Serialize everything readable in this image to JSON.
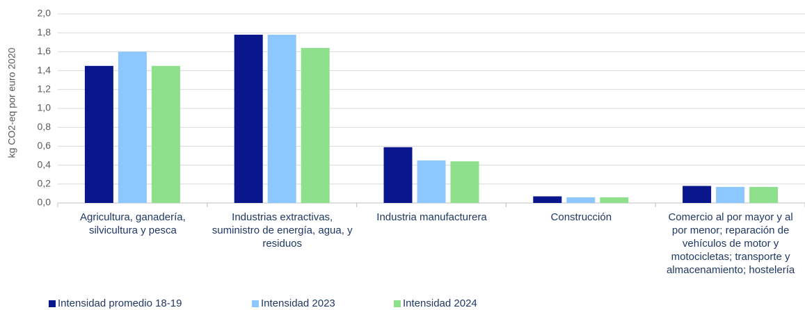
{
  "chart_data": {
    "type": "bar",
    "y_label": "kg CO2-eq por euro 2020",
    "categories": [
      "Agricultura, ganadería, silvicultura y pesca",
      "Industrias extractivas, suministro de energía, agua, y residuos",
      "Industria manufacturera",
      "Construcción",
      "Comercio al por mayor y al por menor; reparación de vehículos de motor y motocicletas; transporte y almacenamiento; hostelería"
    ],
    "series": [
      {
        "name": "Intensidad promedio 18-19",
        "color": "#0a168c",
        "values": [
          1.45,
          1.78,
          0.59,
          0.07,
          0.18
        ]
      },
      {
        "name": "Intensidad 2023",
        "color": "#8cc8ff",
        "values": [
          1.6,
          1.78,
          0.45,
          0.06,
          0.17
        ]
      },
      {
        "name": "Intensidad 2024",
        "color": "#8ee08c",
        "values": [
          1.45,
          1.64,
          0.44,
          0.06,
          0.17
        ]
      }
    ],
    "ylim": [
      0,
      2
    ],
    "yticks": [
      {
        "value": 0,
        "label": "0,0"
      },
      {
        "value": 0.2,
        "label": "0,2"
      },
      {
        "value": 0.4,
        "label": "0,4"
      },
      {
        "value": 0.6,
        "label": "0,6"
      },
      {
        "value": 0.8,
        "label": "0,8"
      },
      {
        "value": 1,
        "label": "1,0"
      },
      {
        "value": 1.2,
        "label": "1,2"
      },
      {
        "value": 1.4,
        "label": "1,4"
      },
      {
        "value": 1.6,
        "label": "1,6"
      },
      {
        "value": 1.8,
        "label": "1,8"
      },
      {
        "value": 2,
        "label": "2,0"
      }
    ],
    "grid": true
  }
}
